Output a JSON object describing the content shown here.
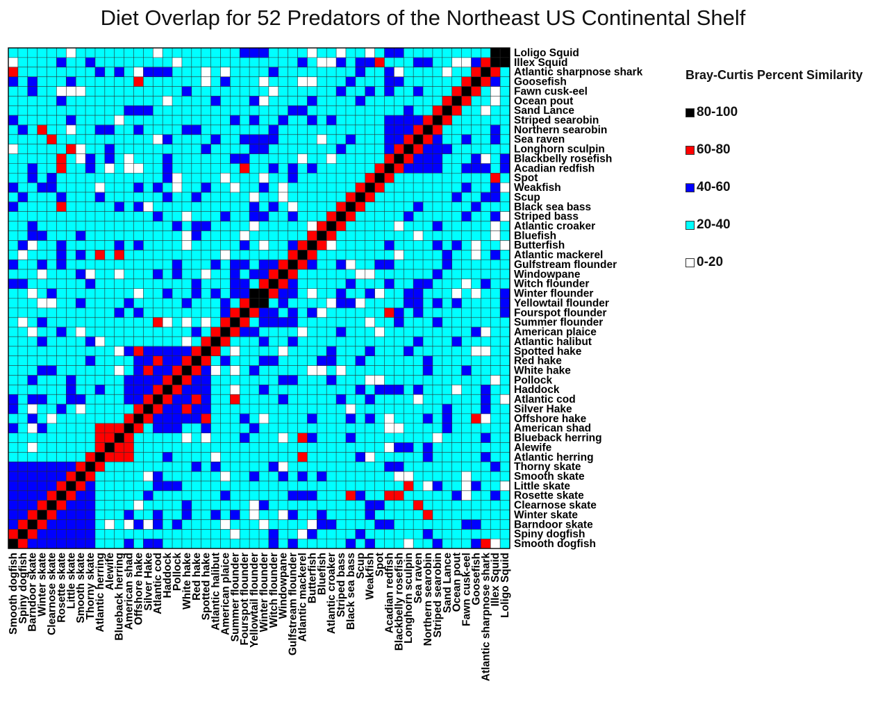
{
  "chart_data": {
    "type": "heatmap",
    "title": "Diet Overlap for 52 Predators of the Northeast US Continental Shelf",
    "species": [
      "Smooth dogfish",
      "Spiny dogfish",
      "Barndoor skate",
      "Winter skate",
      "Clearnose skate",
      "Rosette skate",
      "Little skate",
      "Smooth skate",
      "Thorny skate",
      "Atlantic herring",
      "Alewife",
      "Blueback herring",
      "American shad",
      "Offshore hake",
      "Silver Hake",
      "Atlantic cod",
      "Haddock",
      "Pollock",
      "White hake",
      "Red hake",
      "Spotted hake",
      "Atlantic halibut",
      "American plaice",
      "Summer flounder",
      "Fourspot flounder",
      "Yellowtail flounder",
      "Winter flounder",
      "Witch flounder",
      "Windowpane",
      "Gulfstream flounder",
      "Atlantic mackerel",
      "Butterfish",
      "Bluefish",
      "Atlantic croaker",
      "Striped bass",
      "Black sea bass",
      "Scup",
      "Weakfish",
      "Spot",
      "Acadian redfish",
      "Blackbelly rosefish",
      "Longhorn sculpin",
      "Sea raven",
      "Northern searobin",
      "Striped searobin",
      "Sand Lance",
      "Ocean pout",
      "Fawn cusk-eel",
      "Goosefish",
      "Atlantic sharpnose shark",
      "Illex Squid",
      "Loligo Squid"
    ],
    "legend": {
      "title": "Bray-Curtis Percent Similarity",
      "bins": [
        {
          "label": "80-100",
          "color": "#000000"
        },
        {
          "label": "60-80",
          "color": "#ff0000"
        },
        {
          "label": "40-60",
          "color": "#0000ff"
        },
        {
          "label": "20-40",
          "color": "#00ffff"
        },
        {
          "label": "0-20",
          "color": "#ffffff"
        }
      ]
    },
    "diagonal_value": 100,
    "block_similarity": [
      {
        "rows": [
          "Smooth dogfish",
          "Spiny dogfish",
          "Barndoor skate",
          "Winter skate",
          "Clearnose skate",
          "Rosette skate",
          "Little skate",
          "Smooth skate",
          "Thorny skate"
        ],
        "value": 50
      },
      {
        "rows": [
          "Atlantic herring",
          "Alewife",
          "Blueback herring",
          "American shad"
        ],
        "value": 68
      },
      {
        "rows": [
          "Offshore hake",
          "Silver Hake",
          "Atlantic cod",
          "Haddock",
          "Pollock",
          "White hake",
          "Red hake",
          "Spotted hake"
        ],
        "value": 45
      },
      {
        "rows": [
          "Summer flounder",
          "Fourspot flounder",
          "Yellowtail flounder",
          "Winter flounder",
          "Witch flounder",
          "Windowpane"
        ],
        "value": 42
      },
      {
        "rows": [
          "Acadian redfish",
          "Blackbelly rosefish",
          "Longhorn sculpin",
          "Sea raven",
          "Northern searobin",
          "Striped searobin"
        ],
        "value": 48
      }
    ],
    "pair_values": [
      {
        "a": "Rosette skate",
        "b": "Acadian redfish",
        "value": 65
      },
      {
        "a": "Rosette skate",
        "b": "Blackbelly rosefish",
        "value": 62
      },
      {
        "a": "Little skate",
        "b": "Longhorn sculpin",
        "value": 61
      },
      {
        "a": "Clearnose skate",
        "b": "Sea raven",
        "value": 63
      },
      {
        "a": "Winter skate",
        "b": "Northern searobin",
        "value": 62
      },
      {
        "a": "Rosette skate",
        "b": "Black sea bass",
        "value": 64
      },
      {
        "a": "Atlantic mackerel",
        "b": "Blueback herring",
        "value": 66
      },
      {
        "a": "Atlantic mackerel",
        "b": "Atlantic herring",
        "value": 62
      },
      {
        "a": "Silver Hake",
        "b": "White hake",
        "value": 63
      },
      {
        "a": "Atlantic cod",
        "b": "Red hake",
        "value": 61
      },
      {
        "a": "Summer flounder",
        "b": "Atlantic cod",
        "value": 62
      },
      {
        "a": "Spotted hake",
        "b": "Offshore hake",
        "value": 61
      },
      {
        "a": "Goosefish",
        "b": "Offshore hake",
        "value": 60
      },
      {
        "a": "Illex Squid",
        "b": "Spot",
        "value": 62
      },
      {
        "a": "Acadian redfish",
        "b": "Fourspot flounder",
        "value": 61
      },
      {
        "a": "Loligo Squid",
        "b": "Illex Squid",
        "value": 82
      },
      {
        "a": "Winter flounder",
        "b": "Yellowtail flounder",
        "value": 85
      },
      {
        "a": "Atlantic sharpnose shark",
        "b": "Smooth dogfish",
        "value": 62
      }
    ]
  }
}
